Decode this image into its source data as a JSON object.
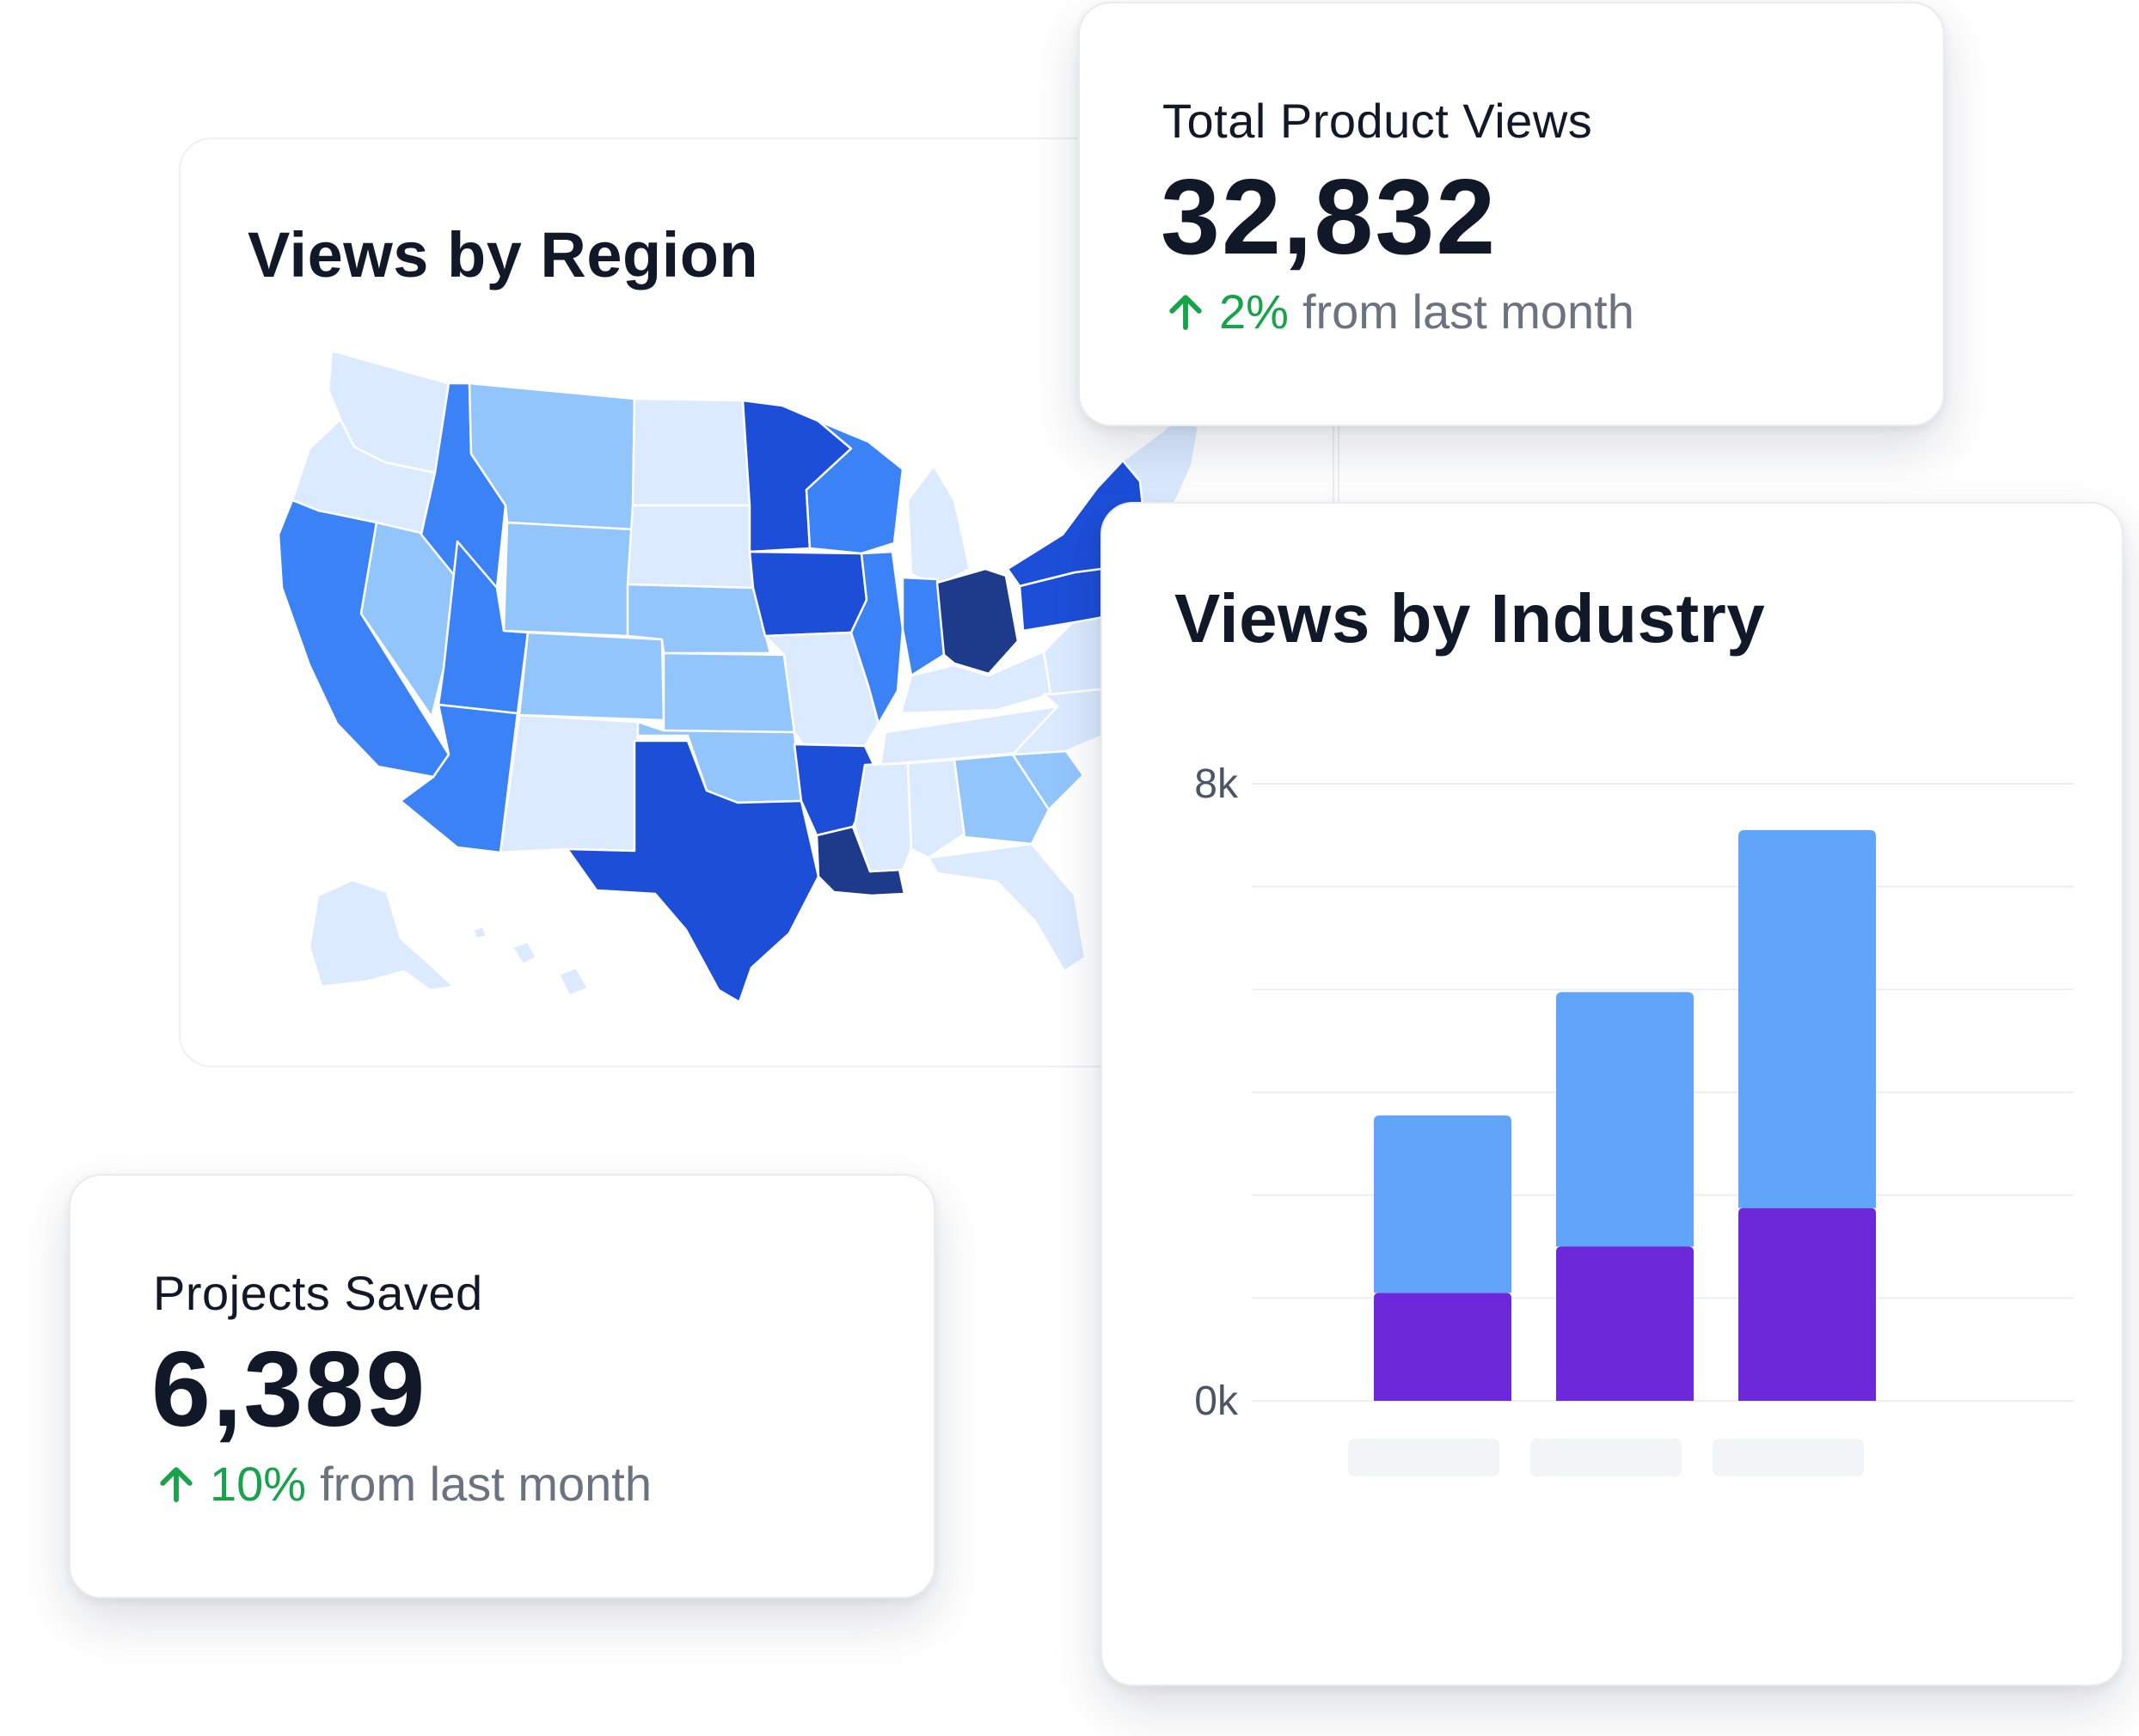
{
  "region_card": {
    "title": "Views by Region",
    "legend_colors": [
      "#dbeafe",
      "#93c5fd",
      "#3b82f6",
      "#1d4ed8",
      "#1e3a8a"
    ],
    "states": [
      {
        "name": "Washington",
        "shade": 0
      },
      {
        "name": "Oregon",
        "shade": 0
      },
      {
        "name": "California",
        "shade": 2
      },
      {
        "name": "Nevada",
        "shade": 1
      },
      {
        "name": "Idaho",
        "shade": 2
      },
      {
        "name": "Montana",
        "shade": 1
      },
      {
        "name": "Wyoming",
        "shade": 1
      },
      {
        "name": "Utah",
        "shade": 2
      },
      {
        "name": "Arizona",
        "shade": 2
      },
      {
        "name": "Colorado",
        "shade": 1
      },
      {
        "name": "New Mexico",
        "shade": 0
      },
      {
        "name": "North Dakota",
        "shade": 0
      },
      {
        "name": "South Dakota",
        "shade": 0
      },
      {
        "name": "Nebraska",
        "shade": 1
      },
      {
        "name": "Kansas",
        "shade": 1
      },
      {
        "name": "Oklahoma",
        "shade": 1
      },
      {
        "name": "Texas",
        "shade": 3
      },
      {
        "name": "Minnesota",
        "shade": 3
      },
      {
        "name": "Iowa",
        "shade": 3
      },
      {
        "name": "Missouri",
        "shade": 0
      },
      {
        "name": "Arkansas",
        "shade": 3
      },
      {
        "name": "Louisiana",
        "shade": 4
      },
      {
        "name": "Wisconsin",
        "shade": 2
      },
      {
        "name": "Illinois",
        "shade": 2
      },
      {
        "name": "Michigan",
        "shade": 0
      },
      {
        "name": "Indiana",
        "shade": 2
      },
      {
        "name": "Ohio",
        "shade": 4
      },
      {
        "name": "Kentucky",
        "shade": 0
      },
      {
        "name": "Tennessee",
        "shade": 0
      },
      {
        "name": "Mississippi",
        "shade": 0
      },
      {
        "name": "Alabama",
        "shade": 0
      },
      {
        "name": "Georgia",
        "shade": 1
      },
      {
        "name": "Florida",
        "shade": 0
      },
      {
        "name": "South Carolina",
        "shade": 1
      },
      {
        "name": "North Carolina",
        "shade": 0
      },
      {
        "name": "Virginia",
        "shade": 0
      },
      {
        "name": "Pennsylvania",
        "shade": 3
      },
      {
        "name": "New York",
        "shade": 3
      },
      {
        "name": "New England",
        "shade": 0
      },
      {
        "name": "Alaska",
        "shade": 0
      },
      {
        "name": "Hawaii",
        "shade": 0
      }
    ]
  },
  "views_card": {
    "label": "Total Product Views",
    "value": "32,832",
    "delta_pct": "2%",
    "delta_text": "from last month",
    "trend": "up"
  },
  "projects_card": {
    "label": "Projects Saved",
    "value": "6,389",
    "delta_pct": "10%",
    "delta_text": "from last month",
    "trend": "up"
  },
  "industry_card": {
    "title": "Views by Industry"
  },
  "chart_data": {
    "type": "bar",
    "stacked": true,
    "categories": [
      "",
      "",
      ""
    ],
    "category_labels_visible": false,
    "series": [
      {
        "values": [
          1400,
          2000,
          2500
        ],
        "color": "#6d28d9"
      },
      {
        "values": [
          2300,
          3300,
          4900
        ],
        "color": "#60a5fa"
      }
    ],
    "y_ticks": [
      "8k",
      "0k"
    ],
    "ylim": [
      0,
      8000
    ],
    "grid": true,
    "gridline_color": "#eceef1",
    "label_placeholder_color": "#f3f4f6"
  },
  "colors": {
    "positive": "#16a34a",
    "muted_text": "#6b7280",
    "heading": "#111827"
  }
}
